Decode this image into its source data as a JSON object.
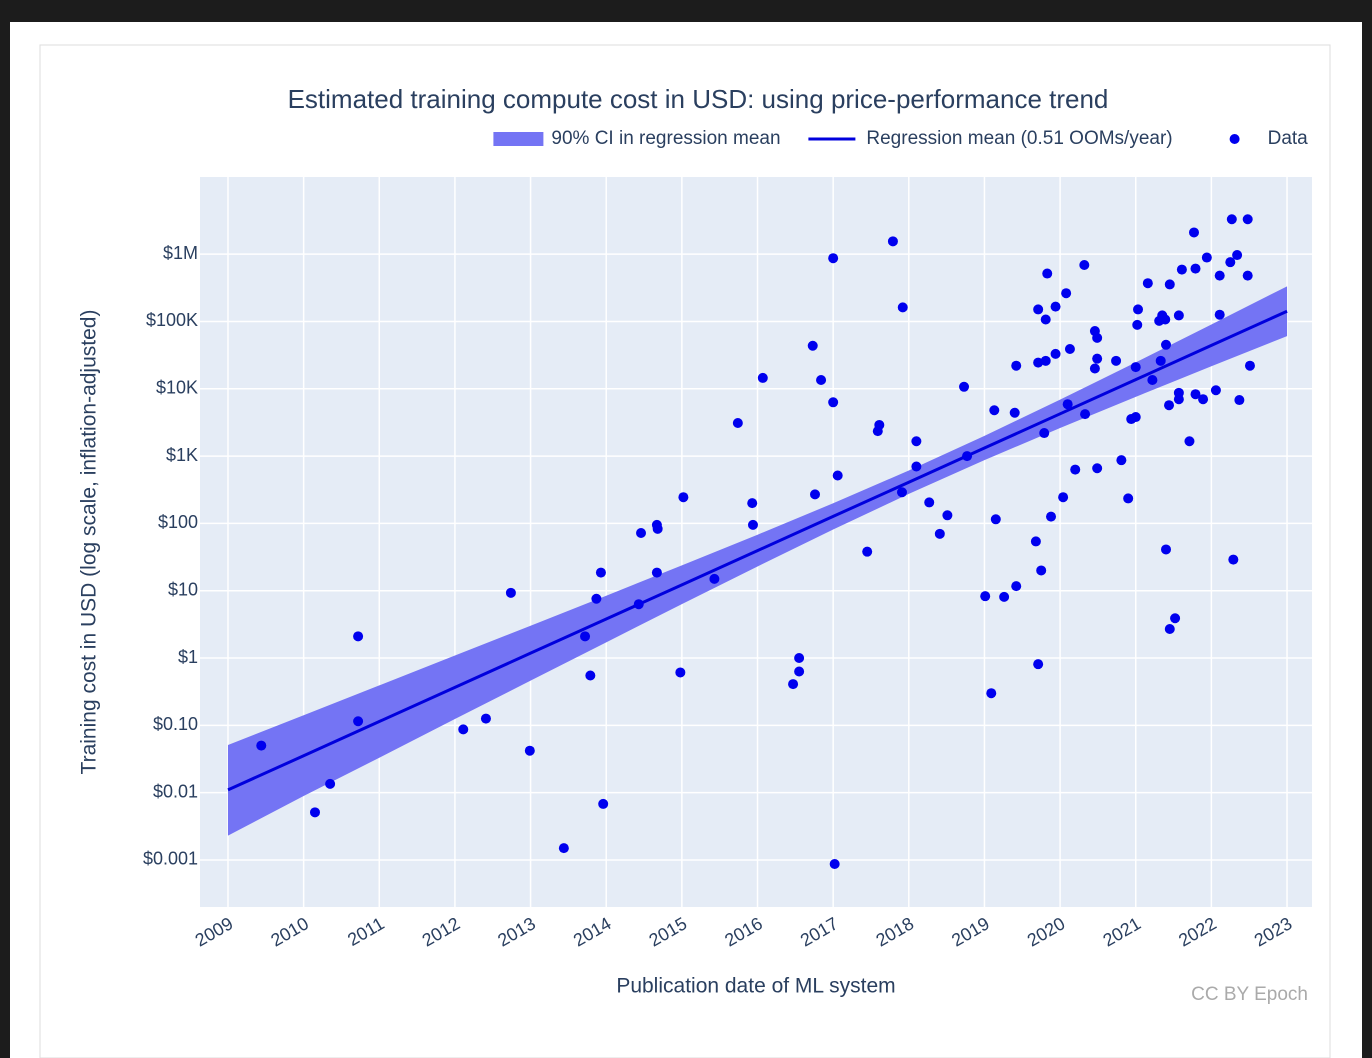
{
  "chart_data": {
    "type": "scatter",
    "title": "Estimated training compute cost in USD: using price-performance trend",
    "x_label": "Publication date of ML system",
    "y_label": "Training cost in USD (log scale, inflation-adjusted)",
    "credit": "CC BY Epoch",
    "log_y": true,
    "grid": true,
    "legend_position": "top-right",
    "xlim": [
      2008.63,
      2023.33
    ],
    "ylim": [
      0.0002,
      14000000
    ],
    "xticks": [
      2009,
      2010,
      2011,
      2012,
      2013,
      2014,
      2015,
      2016,
      2017,
      2018,
      2019,
      2020,
      2021,
      2022,
      2023
    ],
    "yticks": [
      {
        "value": 0.001,
        "label": "$0.001"
      },
      {
        "value": 0.01,
        "label": "$0.01"
      },
      {
        "value": 0.1,
        "label": "$0.10"
      },
      {
        "value": 1,
        "label": "$1"
      },
      {
        "value": 10,
        "label": "$10"
      },
      {
        "value": 100,
        "label": "$100"
      },
      {
        "value": 1000,
        "label": "$1K"
      },
      {
        "value": 10000,
        "label": "$10K"
      },
      {
        "value": 100000,
        "label": "$100K"
      },
      {
        "value": 1000000,
        "label": "$1M"
      }
    ],
    "series": [
      {
        "name": "90% CI in regression mean",
        "type": "band",
        "color": "#7474f4",
        "x": [
          2009,
          2010,
          2011,
          2012,
          2013,
          2014,
          2015,
          2016,
          2017,
          2018,
          2019,
          2020,
          2021,
          2022,
          2023
        ],
        "upper": [
          0.051,
          0.141,
          0.392,
          1.09,
          3.02,
          8.43,
          23.8,
          67.9,
          199,
          611,
          1995,
          6887,
          24660,
          89950,
          332700
        ],
        "lower": [
          0.0023,
          0.0089,
          0.033,
          0.124,
          0.461,
          1.71,
          6.31,
          22.9,
          81.1,
          274,
          871,
          2618,
          7586,
          21580,
          60530
        ]
      },
      {
        "name": "Regression mean (0.51 OOMs/year)",
        "type": "line",
        "color": "#0000dd",
        "x": [
          2009,
          2010,
          2011,
          2012,
          2013,
          2014,
          2015,
          2016,
          2017,
          2018,
          2019,
          2020,
          2021,
          2022,
          2023
        ],
        "values": [
          0.011,
          0.0353,
          0.114,
          0.366,
          1.18,
          3.8,
          12.2,
          39.4,
          127,
          409,
          1318,
          4246,
          13677,
          44060,
          141900
        ]
      },
      {
        "name": "Data",
        "type": "points",
        "color": "#0000ee",
        "x": [
          2009.44,
          2010.15,
          2010.35,
          2010.72,
          2010.72,
          2012.11,
          2012.41,
          2012.74,
          2012.99,
          2013.44,
          2013.72,
          2013.79,
          2013.87,
          2013.93,
          2013.96,
          2014.43,
          2014.46,
          2014.67,
          2014.68,
          2014.67,
          2014.98,
          2015.02,
          2015.43,
          2015.74,
          2015.93,
          2015.94,
          2016.07,
          2016.47,
          2016.55,
          2016.55,
          2016.73,
          2016.76,
          2016.84,
          2017.0,
          2017.0,
          2017.02,
          2017.06,
          2017.45,
          2017.59,
          2017.61,
          2017.79,
          2017.92,
          2017.91,
          2018.1,
          2018.1,
          2018.27,
          2018.41,
          2018.51,
          2018.73,
          2018.77,
          2019.01,
          2019.09,
          2019.13,
          2019.15,
          2019.26,
          2019.4,
          2019.42,
          2019.42,
          2019.68,
          2019.71,
          2019.71,
          2019.71,
          2019.75,
          2019.79,
          2019.81,
          2019.83,
          2019.81,
          2019.88,
          2019.94,
          2019.94,
          2020.04,
          2020.08,
          2020.1,
          2020.13,
          2020.2,
          2020.32,
          2020.33,
          2020.46,
          2020.49,
          2020.46,
          2020.49,
          2020.49,
          2020.74,
          2020.81,
          2020.9,
          2020.94,
          2021.0,
          2021.0,
          2021.02,
          2021.03,
          2021.16,
          2021.22,
          2021.31,
          2021.33,
          2021.35,
          2021.39,
          2021.4,
          2021.4,
          2021.44,
          2021.45,
          2021.45,
          2021.52,
          2021.57,
          2021.57,
          2021.57,
          2021.61,
          2021.71,
          2021.77,
          2021.79,
          2021.79,
          2021.89,
          2021.94,
          2022.06,
          2022.11,
          2022.11,
          2022.25,
          2022.27,
          2022.29,
          2022.34,
          2022.37,
          2022.48,
          2022.48,
          2022.51
        ],
        "values": [
          0.05,
          0.0051,
          0.0135,
          0.115,
          2.1,
          0.087,
          0.126,
          9.3,
          0.042,
          0.0015,
          2.1,
          0.55,
          7.6,
          18.6,
          0.0068,
          6.3,
          72,
          95,
          83,
          18.6,
          0.61,
          245,
          15,
          3100,
          200,
          95,
          14500,
          0.41,
          0.63,
          1.0,
          43600,
          270,
          13500,
          870000,
          6300,
          0.00087,
          515,
          38,
          2350,
          2900,
          1550000,
          162000,
          290,
          1660,
          700,
          205,
          70,
          132,
          10700,
          1000,
          8.3,
          0.3,
          4800,
          115,
          8.1,
          4400,
          11.7,
          22000,
          54,
          24500,
          0.81,
          151000,
          20,
          2200,
          107000,
          515000,
          26000,
          126,
          33000,
          166000,
          245,
          263000,
          5900,
          39000,
          630,
          690000,
          4200,
          72000,
          57000,
          20000,
          28000,
          660,
          26000,
          870,
          235,
          3550,
          3800,
          21000,
          89000,
          151000,
          370000,
          13500,
          102000,
          26000,
          123000,
          107000,
          45000,
          41,
          5700,
          355000,
          2.7,
          3.9,
          123000,
          8700,
          7000,
          590000,
          1660,
          2100000,
          8300,
          610000,
          7000,
          890000,
          9500,
          126000,
          480000,
          760000,
          3300000,
          29,
          970000,
          6800,
          3300000,
          480000,
          22000
        ]
      }
    ]
  }
}
